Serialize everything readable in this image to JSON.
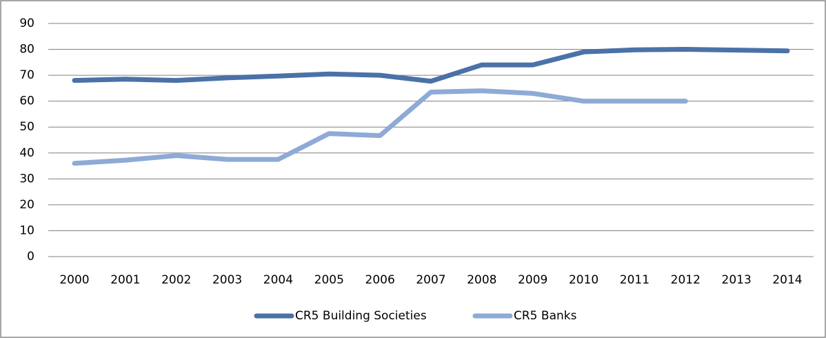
{
  "chart_data": {
    "type": "line",
    "categories": [
      "2000",
      "2001",
      "2002",
      "2003",
      "2004",
      "2005",
      "2006",
      "2007",
      "2008",
      "2009",
      "2010",
      "2011",
      "2012",
      "2013",
      "2014"
    ],
    "series": [
      {
        "name": "CR5 Building Societies",
        "color": "#4a72a8",
        "values": [
          68,
          68.5,
          68,
          69,
          69.7,
          70.5,
          70,
          67.7,
          74,
          74,
          79,
          79.8,
          80,
          79.7,
          79.4
        ]
      },
      {
        "name": "CR5 Banks",
        "color": "#8eaad6",
        "values": [
          36,
          37.2,
          39,
          37.5,
          37.5,
          47.5,
          46.7,
          63.5,
          64,
          63,
          60,
          60,
          60,
          null,
          null
        ]
      }
    ],
    "ylim": [
      0,
      90
    ],
    "yticks": [
      0,
      10,
      20,
      30,
      40,
      50,
      60,
      70,
      80,
      90
    ],
    "grid": true,
    "legend": "bottom"
  }
}
